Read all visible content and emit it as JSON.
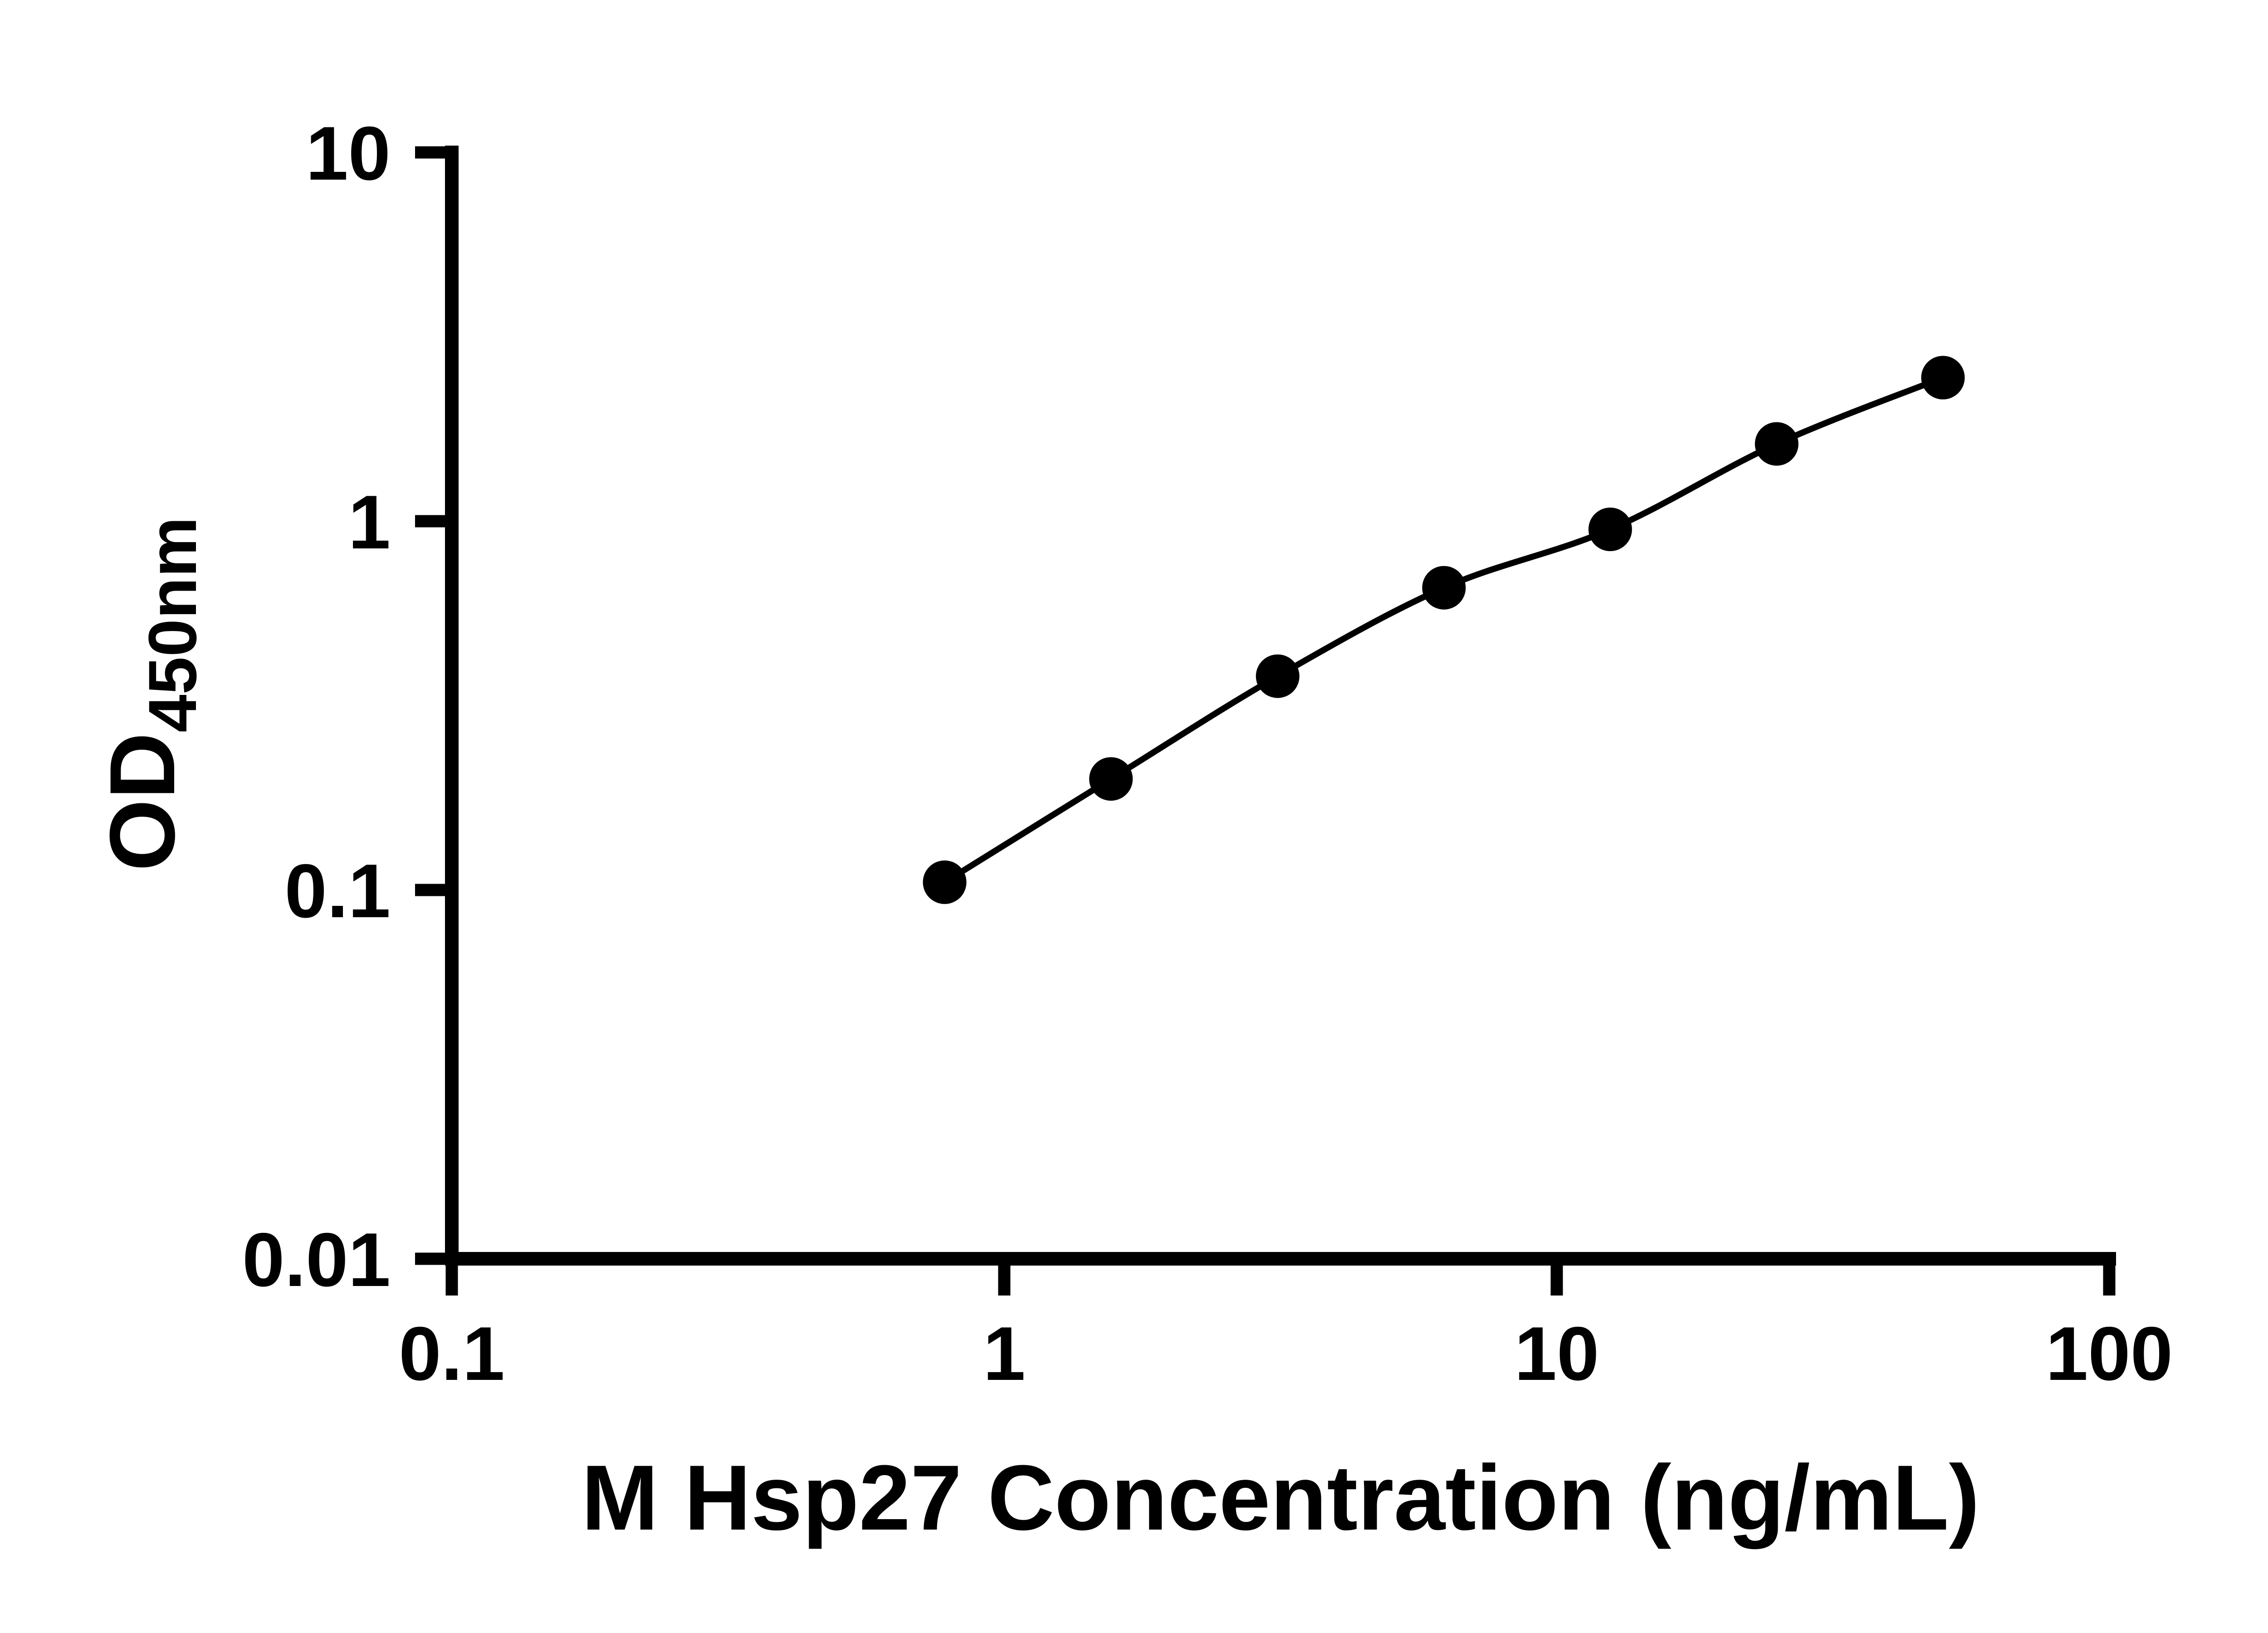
{
  "page": {
    "background_color": "#ffffff"
  },
  "chart_data": {
    "type": "scatter",
    "xlabel": "M Hsp27 Concentration (ng/mL)",
    "ylabel_main": "OD",
    "ylabel_sub": "450nm",
    "x_scale": "log",
    "y_scale": "log",
    "xlim": [
      0.1,
      100
    ],
    "ylim": [
      0.01,
      10
    ],
    "x_ticks": [
      {
        "v": 0.1,
        "label": "0.1"
      },
      {
        "v": 1,
        "label": "1"
      },
      {
        "v": 10,
        "label": "10"
      },
      {
        "v": 100,
        "label": "100"
      }
    ],
    "y_ticks": [
      {
        "v": 0.01,
        "label": "0.01"
      },
      {
        "v": 0.1,
        "label": "0.1"
      },
      {
        "v": 1,
        "label": "1"
      },
      {
        "v": 10,
        "label": "10"
      }
    ],
    "x": [
      0.78,
      1.56,
      3.125,
      6.25,
      12.5,
      25,
      50
    ],
    "y": [
      0.105,
      0.2,
      0.38,
      0.66,
      0.95,
      1.62,
      2.45
    ],
    "grid": false,
    "legend": false,
    "marker_shape": "filled-circle",
    "marker_color": "#000000",
    "line_color": "#000000",
    "line_fit": "smooth",
    "axis_color": "#000000",
    "text_color": "#000000"
  }
}
